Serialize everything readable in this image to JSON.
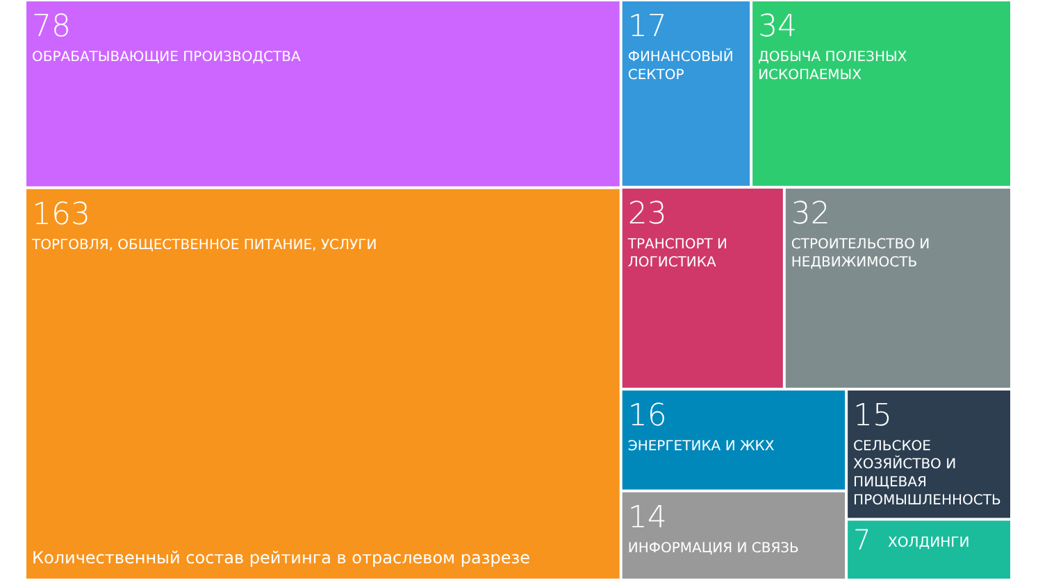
{
  "chart_data": {
    "type": "other",
    "categories": [
      "ОБРАБАТЫВАЮЩИЕ ПРОИЗВОДСТВА",
      "ТОРГОВЛЯ, ОБЩЕСТВЕННОЕ ПИТАНИЕ, УСЛУГИ",
      "ФИНАНСОВЫЙ СЕКТОР",
      "ДОБЫЧА ПОЛЕЗНЫХ ИСКОПАЕМЫХ",
      "ТРАНСПОРТ И ЛОГИСТИКА",
      "СТРОИТЕЛЬСТВО И НЕДВИЖИМОСТЬ",
      "ЭНЕРГЕТИКА И ЖКХ",
      "ИНФОРМАЦИЯ И СВЯЗЬ",
      "СЕЛЬСКОЕ ХОЗЯЙСТВО И ПИЩЕВАЯ ПРОМЫШЛЕННОСТЬ",
      "ХОЛДИНГИ"
    ],
    "values": [
      78,
      163,
      17,
      34,
      23,
      32,
      16,
      14,
      15,
      7
    ],
    "colors": [
      "#cc66ff",
      "#f7941d",
      "#3498db",
      "#2ecc71",
      "#d0386a",
      "#7f8c8d",
      "#0088bb",
      "#999999",
      "#2c3e50",
      "#1abc9c"
    ],
    "data_labels": true,
    "annotations": [
      "Количественный состав рейтинга в отраслевом разрезе"
    ]
  }
}
